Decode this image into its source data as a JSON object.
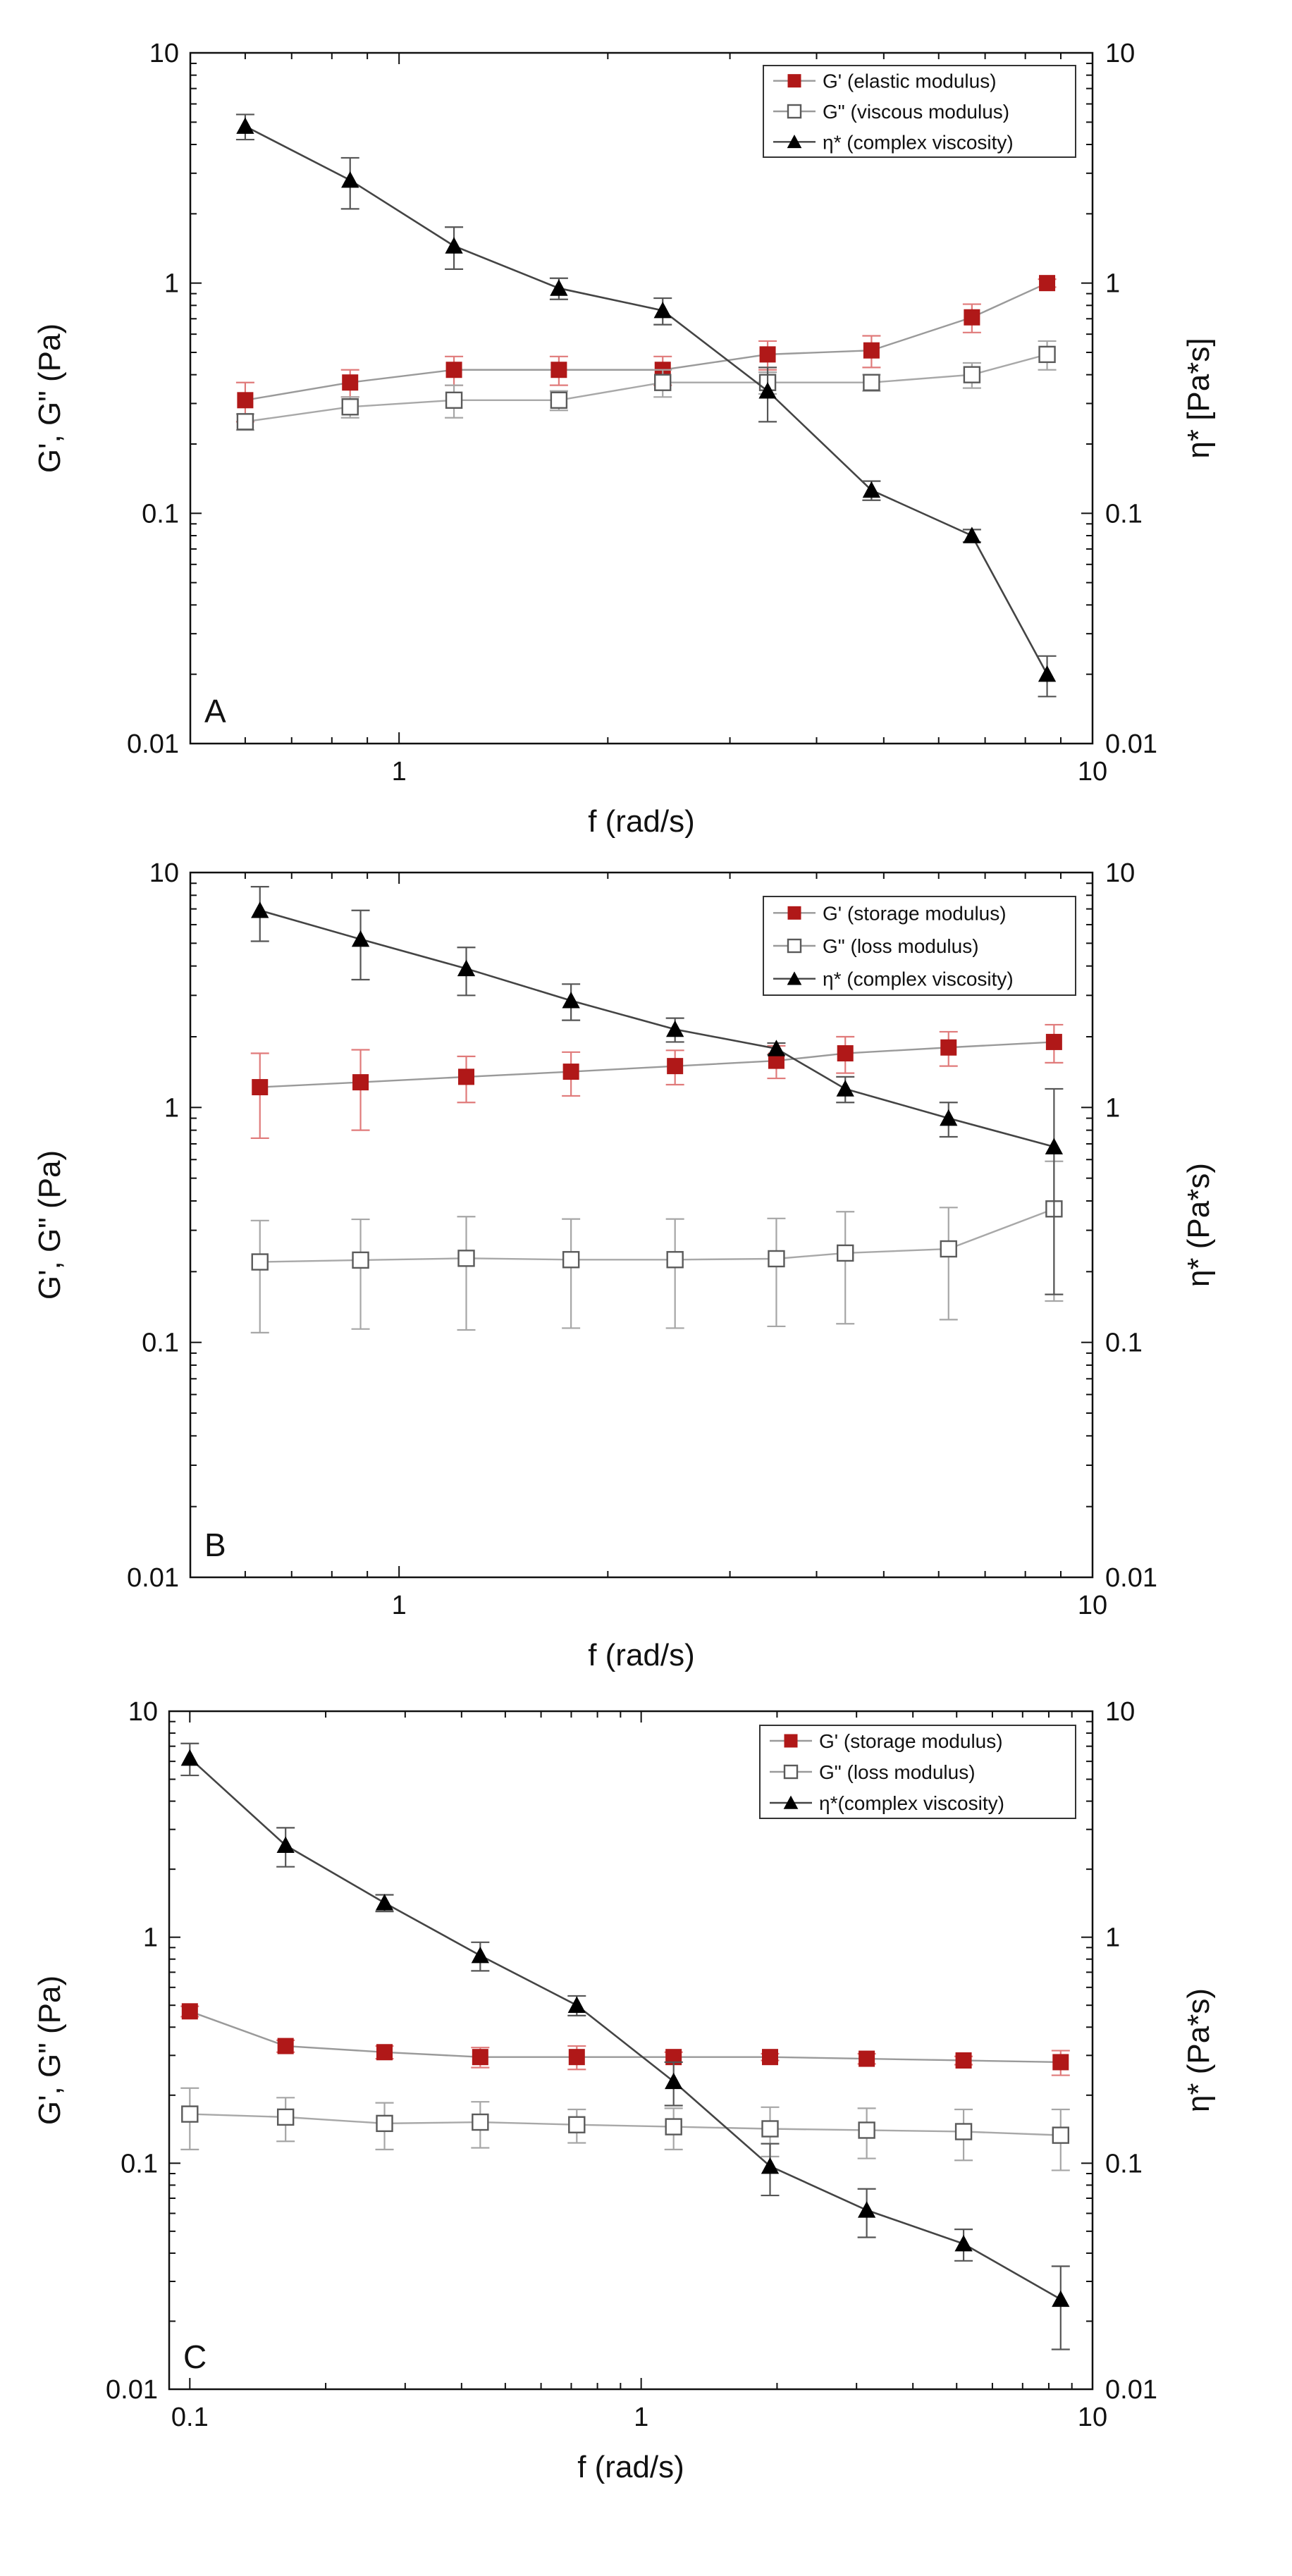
{
  "colors": {
    "storage": "#b01818",
    "storage_err": "#e07a7a",
    "loss": "#8a8a8a",
    "loss_err": "#a6a6a6",
    "visc": "#000000",
    "visc_line": "#444444",
    "frame": "#111111"
  },
  "chart_data": [
    {
      "type": "line",
      "panel_label": "A",
      "xlabel": "f (rad/s)",
      "ylabel_left": "G', G\" (Pa)",
      "ylabel_right": "η* [Pa*s]",
      "xscale": "log",
      "yscale": "log",
      "xlim": [
        0.5,
        10
      ],
      "ylim": [
        0.01,
        10
      ],
      "x_ticks": [
        {
          "value": 1,
          "label": "1"
        },
        {
          "value": 10,
          "label": "10"
        }
      ],
      "y_ticks": [
        {
          "value": 0.01,
          "label": "0.01"
        },
        {
          "value": 0.1,
          "label": "0.1"
        },
        {
          "value": 1,
          "label": "1"
        },
        {
          "value": 10,
          "label": "10"
        }
      ],
      "x": [
        0.6,
        0.85,
        1.2,
        1.7,
        2.4,
        3.4,
        4.8,
        6.7,
        8.6
      ],
      "legend_position": "top-right",
      "series": [
        {
          "name": "G' (elastic modulus)",
          "role": "storage",
          "values": [
            0.31,
            0.37,
            0.42,
            0.42,
            0.42,
            0.49,
            0.51,
            0.71,
            1.0
          ],
          "err": [
            0.06,
            0.05,
            0.06,
            0.06,
            0.06,
            0.07,
            0.08,
            0.1,
            0.04
          ]
        },
        {
          "name": "G\" (viscous modulus)",
          "role": "loss",
          "values": [
            0.25,
            0.29,
            0.31,
            0.31,
            0.37,
            0.37,
            0.37,
            0.4,
            0.49
          ],
          "err": [
            0.02,
            0.03,
            0.05,
            0.03,
            0.05,
            0.04,
            0.03,
            0.05,
            0.07
          ]
        },
        {
          "name": "η*  (complex viscosity)",
          "role": "visc",
          "values": [
            4.8,
            2.8,
            1.45,
            0.95,
            0.76,
            0.34,
            0.126,
            0.08,
            0.02
          ],
          "err": [
            0.6,
            0.7,
            0.3,
            0.1,
            0.1,
            0.09,
            0.012,
            0.005,
            0.004
          ]
        }
      ]
    },
    {
      "type": "line",
      "panel_label": "B",
      "xlabel": "f (rad/s)",
      "ylabel_left": "G', G\" (Pa)",
      "ylabel_right": "η* (Pa*s)",
      "xscale": "log",
      "yscale": "log",
      "xlim": [
        0.5,
        10
      ],
      "ylim": [
        0.01,
        10
      ],
      "x_ticks": [
        {
          "value": 1,
          "label": "1"
        },
        {
          "value": 10,
          "label": "10"
        }
      ],
      "y_ticks": [
        {
          "value": 0.01,
          "label": "0.01"
        },
        {
          "value": 0.1,
          "label": "0.1"
        },
        {
          "value": 1,
          "label": "1"
        },
        {
          "value": 10,
          "label": "10"
        }
      ],
      "x": [
        0.63,
        0.88,
        1.25,
        1.77,
        2.5,
        3.5,
        4.4,
        6.2,
        8.8
      ],
      "legend_position": "top-right",
      "series": [
        {
          "name": "G' (storage modulus)",
          "role": "storage",
          "values": [
            1.22,
            1.28,
            1.35,
            1.42,
            1.5,
            1.58,
            1.7,
            1.8,
            1.9
          ],
          "err": [
            0.48,
            0.48,
            0.3,
            0.3,
            0.25,
            0.25,
            0.3,
            0.3,
            0.35
          ]
        },
        {
          "name": "G\" (loss modulus)",
          "role": "loss",
          "values": [
            0.22,
            0.224,
            0.228,
            0.225,
            0.225,
            0.227,
            0.24,
            0.25,
            0.37
          ],
          "err": [
            0.11,
            0.11,
            0.115,
            0.11,
            0.11,
            0.11,
            0.12,
            0.125,
            0.22
          ]
        },
        {
          "name": "η* (complex viscosity)",
          "role": "visc",
          "values": [
            6.9,
            5.2,
            3.9,
            2.85,
            2.15,
            1.78,
            1.2,
            0.9,
            0.68
          ],
          "err": [
            1.8,
            1.7,
            0.9,
            0.5,
            0.25,
            0.1,
            0.15,
            0.15,
            0.52
          ]
        }
      ]
    },
    {
      "type": "line",
      "panel_label": "C",
      "xlabel": "f (rad/s)",
      "ylabel_left": "G', G\" (Pa)",
      "ylabel_right": "η* (Pa*s)",
      "xscale": "log",
      "yscale": "log",
      "xlim": [
        0.09,
        10
      ],
      "ylim": [
        0.01,
        10
      ],
      "x_ticks": [
        {
          "value": 0.1,
          "label": "0.1"
        },
        {
          "value": 1,
          "label": "1"
        },
        {
          "value": 10,
          "label": "10"
        }
      ],
      "y_ticks": [
        {
          "value": 0.01,
          "label": "0.01"
        },
        {
          "value": 0.1,
          "label": "0.1"
        },
        {
          "value": 1,
          "label": "1"
        },
        {
          "value": 10,
          "label": "10"
        }
      ],
      "x": [
        0.1,
        0.163,
        0.27,
        0.44,
        0.72,
        1.18,
        1.93,
        3.16,
        5.18,
        8.5
      ],
      "legend_position": "top-right",
      "series": [
        {
          "name": "G' (storage modulus)",
          "role": "storage",
          "values": [
            0.47,
            0.33,
            0.31,
            0.295,
            0.295,
            0.295,
            0.295,
            0.29,
            0.285,
            0.28
          ],
          "err": [
            0.025,
            0.02,
            0.02,
            0.03,
            0.035,
            0.015,
            0.01,
            0.015,
            0.012,
            0.035
          ]
        },
        {
          "name": "G\" (loss modulus)",
          "role": "loss",
          "values": [
            0.165,
            0.16,
            0.15,
            0.152,
            0.148,
            0.145,
            0.142,
            0.14,
            0.138,
            0.133
          ],
          "err": [
            0.05,
            0.035,
            0.035,
            0.035,
            0.025,
            0.03,
            0.035,
            0.035,
            0.035,
            0.04
          ]
        },
        {
          "name": "η*(complex viscosity)",
          "role": "visc",
          "values": [
            6.2,
            2.55,
            1.42,
            0.83,
            0.5,
            0.23,
            0.097,
            0.062,
            0.044,
            0.025
          ],
          "err": [
            1.0,
            0.5,
            0.12,
            0.12,
            0.05,
            0.05,
            0.025,
            0.015,
            0.007,
            0.01
          ]
        }
      ]
    }
  ]
}
